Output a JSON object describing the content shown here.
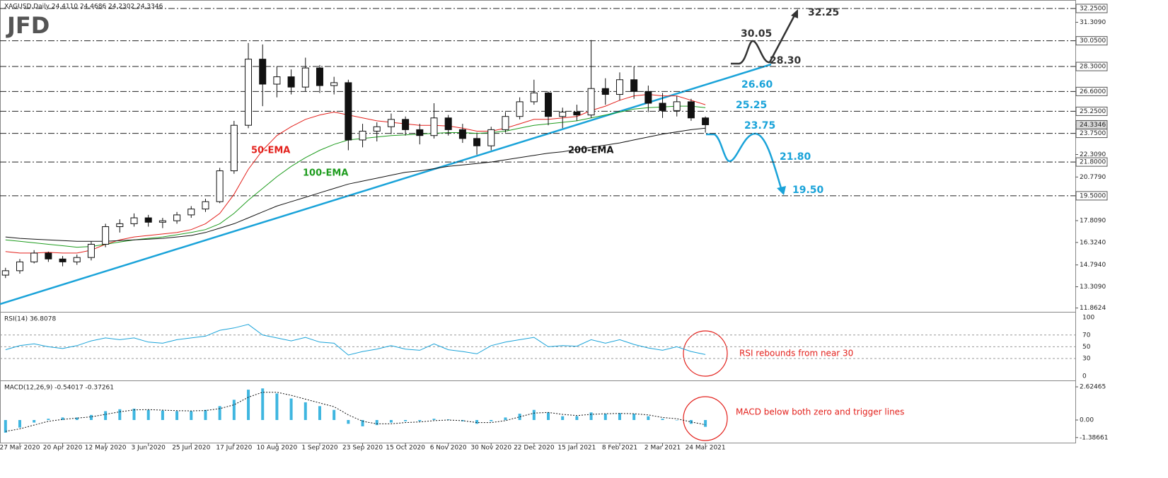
{
  "logo": "JFD",
  "chart_data": [
    {
      "type": "candlestick",
      "title": "XAGUSD,Daily  24.4110 24.4686 24.2302 24.3346",
      "categories": [
        null,
        "27 Mar 2020",
        null,
        null,
        "20 Apr 2020",
        null,
        null,
        "12 May 2020",
        null,
        null,
        "3 Jun 2020",
        null,
        null,
        "25 Jun 2020",
        null,
        null,
        "17 Jul 2020",
        null,
        null,
        "10 Aug 2020",
        null,
        null,
        "1 Sep 2020",
        null,
        null,
        "23 Sep 2020",
        null,
        null,
        "15 Oct 2020",
        null,
        null,
        "6 Nov 2020",
        null,
        null,
        "30 Nov 2020",
        null,
        null,
        "22 Dec 2020",
        null,
        null,
        "15 Jan 2021",
        null,
        null,
        "8 Feb 2021",
        null,
        null,
        "2 Mar 2021",
        null,
        null,
        "24 Mar 2021"
      ],
      "open": [
        14.1,
        14.4,
        15.0,
        15.6,
        15.2,
        15.0,
        15.3,
        16.2,
        17.4,
        17.6,
        18.0,
        17.7,
        17.8,
        18.2,
        18.6,
        19.1,
        21.2,
        24.3,
        28.8,
        27.1,
        27.6,
        26.9,
        28.2,
        27.0,
        27.2,
        23.3,
        23.9,
        24.2,
        24.7,
        24.0,
        23.6,
        24.8,
        24.0,
        23.4,
        22.9,
        24.0,
        24.9,
        25.9,
        26.5,
        24.9,
        25.2,
        25.0,
        26.8,
        26.4,
        27.4,
        26.6,
        25.8,
        25.3,
        25.9,
        24.8
      ],
      "high": [
        14.6,
        15.2,
        15.8,
        15.7,
        15.4,
        15.5,
        16.4,
        17.6,
        17.9,
        18.3,
        18.2,
        18.0,
        18.4,
        18.8,
        19.3,
        21.4,
        24.6,
        29.9,
        29.8,
        28.3,
        28.1,
        28.9,
        28.4,
        27.6,
        27.4,
        24.4,
        24.5,
        25.1,
        24.9,
        24.4,
        25.8,
        25.0,
        24.4,
        23.8,
        24.2,
        25.2,
        26.2,
        27.4,
        26.6,
        25.5,
        25.7,
        30.1,
        27.5,
        27.9,
        28.3,
        27.0,
        26.5,
        26.3,
        26.1,
        24.9
      ],
      "low": [
        13.9,
        14.2,
        14.9,
        15.0,
        14.7,
        14.8,
        15.1,
        16.0,
        17.0,
        17.4,
        17.4,
        17.3,
        17.6,
        18.0,
        18.4,
        19.0,
        21.0,
        24.1,
        25.6,
        26.2,
        26.4,
        26.6,
        26.5,
        26.4,
        22.6,
        22.8,
        23.2,
        23.7,
        23.6,
        23.0,
        23.4,
        23.6,
        23.1,
        22.3,
        22.6,
        23.8,
        24.7,
        25.7,
        24.3,
        24.1,
        24.6,
        24.8,
        25.7,
        26.0,
        26.1,
        25.2,
        24.8,
        24.9,
        24.6,
        23.8
      ],
      "close": [
        14.4,
        15.0,
        15.6,
        15.2,
        15.0,
        15.3,
        16.2,
        17.4,
        17.6,
        18.0,
        17.7,
        17.8,
        18.2,
        18.6,
        19.1,
        21.2,
        24.3,
        28.8,
        27.1,
        27.6,
        26.9,
        28.2,
        27.0,
        27.2,
        23.3,
        23.9,
        24.2,
        24.7,
        24.0,
        23.6,
        24.8,
        24.0,
        23.4,
        22.9,
        24.0,
        24.9,
        25.9,
        26.5,
        24.9,
        25.2,
        25.0,
        26.8,
        26.4,
        27.4,
        26.6,
        25.8,
        25.3,
        25.9,
        24.8,
        24.3346
      ],
      "lines": [
        {
          "name": "50-EMA",
          "color": "#e3211c",
          "values": [
            15.7,
            15.6,
            15.6,
            15.65,
            15.6,
            15.6,
            15.8,
            16.2,
            16.5,
            16.7,
            16.8,
            16.9,
            17.0,
            17.2,
            17.6,
            18.3,
            19.6,
            21.3,
            22.6,
            23.6,
            24.2,
            24.7,
            25.0,
            25.2,
            25.0,
            24.8,
            24.6,
            24.5,
            24.4,
            24.3,
            24.3,
            24.25,
            24.1,
            23.9,
            23.9,
            24.1,
            24.4,
            24.7,
            24.7,
            24.8,
            24.9,
            25.3,
            25.6,
            26.0,
            26.3,
            26.4,
            26.3,
            26.3,
            26.0,
            25.7
          ]
        },
        {
          "name": "100-EMA",
          "color": "#1e9c1e",
          "values": [
            16.5,
            16.4,
            16.3,
            16.2,
            16.1,
            16.0,
            16.05,
            16.2,
            16.35,
            16.5,
            16.6,
            16.7,
            16.85,
            17.0,
            17.2,
            17.6,
            18.3,
            19.2,
            20.0,
            20.8,
            21.5,
            22.1,
            22.6,
            23.0,
            23.3,
            23.4,
            23.5,
            23.6,
            23.65,
            23.7,
            23.75,
            23.8,
            23.8,
            23.75,
            23.8,
            23.9,
            24.1,
            24.3,
            24.4,
            24.5,
            24.6,
            24.8,
            25.0,
            25.2,
            25.4,
            25.5,
            25.55,
            25.6,
            25.6,
            25.5
          ]
        },
        {
          "name": "200-EMA",
          "color": "#111111",
          "values": [
            16.7,
            16.6,
            16.55,
            16.5,
            16.45,
            16.4,
            16.4,
            16.4,
            16.45,
            16.5,
            16.55,
            16.6,
            16.7,
            16.8,
            17.0,
            17.3,
            17.6,
            18.0,
            18.4,
            18.8,
            19.1,
            19.4,
            19.7,
            20.0,
            20.3,
            20.5,
            20.7,
            20.9,
            21.1,
            21.2,
            21.35,
            21.5,
            21.6,
            21.7,
            21.8,
            21.95,
            22.1,
            22.25,
            22.4,
            22.5,
            22.65,
            22.8,
            22.95,
            23.1,
            23.3,
            23.5,
            23.7,
            23.85,
            24.0,
            24.1
          ]
        }
      ],
      "ylim": [
        11.65,
        32.73
      ],
      "yticks": [
        {
          "value": 32.25,
          "label": "32.2500"
        },
        {
          "value": 31.309,
          "label": "31.3090"
        },
        {
          "value": 30.05,
          "label": "30.0500"
        },
        {
          "value": 28.3,
          "label": "28.3000"
        },
        {
          "value": 26.6,
          "label": "26.6000"
        },
        {
          "value": 25.25,
          "label": "25.2500"
        },
        {
          "value": 24.3346,
          "label": "24.3346"
        },
        {
          "value": 23.75,
          "label": "23.7500"
        },
        {
          "value": 22.309,
          "label": "22.3090"
        },
        {
          "value": 21.8,
          "label": "21.8000"
        },
        {
          "value": 20.779,
          "label": "20.7790"
        },
        {
          "value": 19.5,
          "label": "19.5000"
        },
        {
          "value": 17.809,
          "label": "17.8090"
        },
        {
          "value": 16.324,
          "label": "16.3240"
        },
        {
          "value": 14.794,
          "label": "14.7940"
        },
        {
          "value": 13.309,
          "label": "13.3090"
        },
        {
          "value": 11.8624,
          "label": "11.8624"
        }
      ],
      "levels": [
        {
          "value": 32.25,
          "label": "32.25",
          "color": "#333333"
        },
        {
          "value": 30.05,
          "label": "30.05",
          "color": "#333333"
        },
        {
          "value": 28.3,
          "label": "28.30",
          "color": "#333333"
        },
        {
          "value": 26.6,
          "label": "26.60",
          "color": "#1aa3d9"
        },
        {
          "value": 25.25,
          "label": "25.25",
          "color": "#1aa3d9"
        },
        {
          "value": 23.75,
          "label": "23.75",
          "color": "#1aa3d9"
        },
        {
          "value": 21.8,
          "label": "21.80",
          "color": "#1aa3d9"
        },
        {
          "value": 19.5,
          "label": "19.50",
          "color": "#1aa3d9"
        }
      ]
    },
    {
      "type": "line",
      "title": "RSI(14) 36.8078",
      "color": "#1aa3d9",
      "values": [
        45,
        52,
        55,
        50,
        47,
        52,
        60,
        65,
        62,
        65,
        58,
        56,
        62,
        65,
        68,
        78,
        82,
        88,
        70,
        65,
        60,
        66,
        58,
        56,
        36,
        42,
        46,
        52,
        46,
        44,
        55,
        45,
        42,
        38,
        52,
        58,
        62,
        66,
        50,
        52,
        51,
        62,
        56,
        62,
        54,
        48,
        44,
        50,
        42,
        36.8078
      ],
      "ylim": [
        -6,
        107
      ],
      "yticks": [
        100,
        70,
        50,
        30,
        0
      ],
      "annotation": "RSI rebounds from near 30",
      "annotation_color": "#e3211c"
    },
    {
      "type": "bar",
      "title": "MACD(12,26,9) -0.54017 -0.37261",
      "color": "#3fb6e0",
      "values": [
        -1.0,
        -0.6,
        -0.2,
        0.1,
        0.2,
        0.2,
        0.4,
        0.7,
        0.85,
        0.9,
        0.8,
        0.75,
        0.7,
        0.7,
        0.8,
        1.1,
        1.6,
        2.4,
        2.5,
        2.1,
        1.7,
        1.4,
        1.1,
        0.8,
        -0.3,
        -0.5,
        -0.4,
        -0.2,
        -0.1,
        -0.1,
        0.1,
        0.05,
        -0.1,
        -0.3,
        -0.1,
        0.2,
        0.5,
        0.8,
        0.6,
        0.3,
        0.3,
        0.6,
        0.5,
        0.55,
        0.5,
        0.3,
        0.1,
        0.0,
        -0.3,
        -0.54017
      ],
      "signal": [
        -0.9,
        -0.7,
        -0.4,
        -0.1,
        0.05,
        0.15,
        0.25,
        0.45,
        0.65,
        0.8,
        0.82,
        0.78,
        0.74,
        0.72,
        0.75,
        0.9,
        1.2,
        1.8,
        2.2,
        2.2,
        1.95,
        1.65,
        1.35,
        1.05,
        0.4,
        -0.1,
        -0.3,
        -0.3,
        -0.2,
        -0.15,
        -0.05,
        0.0,
        -0.05,
        -0.2,
        -0.2,
        -0.05,
        0.25,
        0.55,
        0.6,
        0.45,
        0.35,
        0.45,
        0.5,
        0.52,
        0.5,
        0.4,
        0.2,
        0.1,
        -0.15,
        -0.37261
      ],
      "ylim": [
        -1.79,
        3.02
      ],
      "yticks": [
        2.62465,
        {
          "value": 0,
          "label": "0.00"
        },
        -1.38661
      ],
      "annotation": "MACD below both zero and trigger lines",
      "annotation_color": "#e3211c"
    }
  ]
}
